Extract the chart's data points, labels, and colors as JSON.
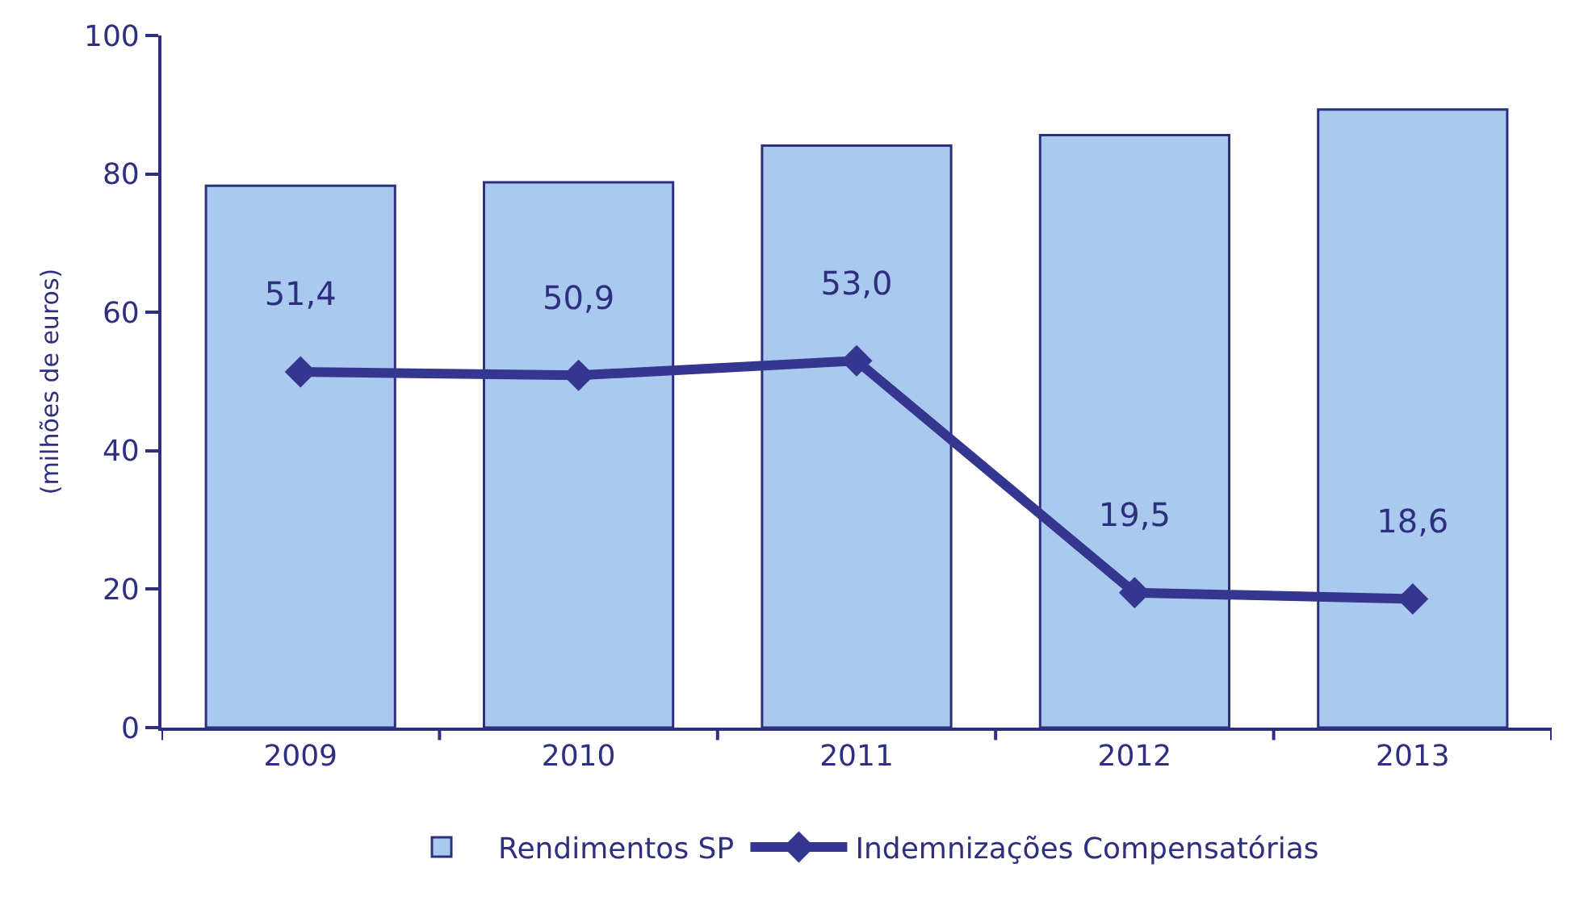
{
  "chart_data": {
    "type": "bar",
    "ylabel": "(milhões de euros)",
    "categories": [
      "2009",
      "2010",
      "2011",
      "2012",
      "2013"
    ],
    "series": [
      {
        "name": "Rendimentos SP",
        "color": "#a9c9ee",
        "values": [
          78.3,
          78.8,
          84.1,
          85.6,
          89.3
        ]
      },
      {
        "name": "Indemnizações Compensatórias",
        "type": "line",
        "color": "#35368f",
        "values": [
          51.4,
          50.9,
          53.0,
          19.5,
          18.6
        ],
        "value_labels": [
          "51,4",
          "50,9",
          "53,0",
          "19,5",
          "18,6"
        ],
        "marker": "diamond"
      }
    ],
    "ylim": [
      0,
      100
    ],
    "yticks": [
      0,
      20,
      40,
      60,
      80,
      100
    ],
    "grid": false,
    "legend": "bottom"
  }
}
